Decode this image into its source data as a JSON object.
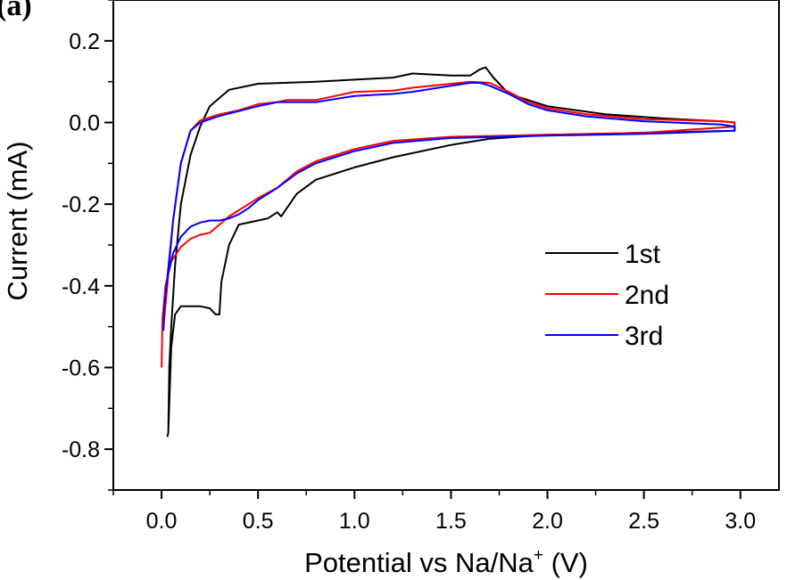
{
  "figure": {
    "panel_label": "(a)"
  },
  "chart_data": {
    "type": "line",
    "title": "",
    "xlabel": "Potential vs Na/Na⁺ (V)",
    "xlabel_main": "Potential vs Na/Na",
    "xlabel_sup": "+",
    "xlabel_unit": " (V)",
    "ylabel": "Current (mA)",
    "xlim": [
      -0.25,
      3.2
    ],
    "ylim": [
      -0.9,
      0.3
    ],
    "xticks": [
      0.0,
      0.5,
      1.0,
      1.5,
      2.0,
      2.5,
      3.0
    ],
    "xtick_labels": [
      "0.0",
      "0.5",
      "1.0",
      "1.5",
      "2.0",
      "2.5",
      "3.0"
    ],
    "yticks": [
      -0.8,
      -0.6,
      -0.4,
      -0.2,
      0.0,
      0.2
    ],
    "ytick_labels": [
      "-0.8",
      "-0.6",
      "-0.4",
      "-0.2",
      "0.0",
      "0.2"
    ],
    "grid": false,
    "legend_position": "center-right",
    "series": [
      {
        "name": "1st",
        "color": "#000000",
        "x": [
          0.03,
          0.035,
          0.05,
          0.07,
          0.1,
          0.15,
          0.2,
          0.25,
          0.28,
          0.3,
          0.31,
          0.35,
          0.4,
          0.5,
          0.55,
          0.6,
          0.62,
          0.7,
          0.8,
          1.0,
          1.2,
          1.5,
          1.7,
          2.0,
          2.5,
          2.97,
          2.97,
          2.9,
          2.6,
          2.3,
          2.0,
          1.8,
          1.72,
          1.68,
          1.65,
          1.6,
          1.5,
          1.3,
          1.2,
          1.0,
          0.8,
          0.5,
          0.35,
          0.25,
          0.2,
          0.15,
          0.1,
          0.07,
          0.05,
          0.04,
          0.035
        ],
        "y": [
          -0.77,
          -0.76,
          -0.55,
          -0.47,
          -0.45,
          -0.45,
          -0.45,
          -0.455,
          -0.47,
          -0.47,
          -0.39,
          -0.3,
          -0.25,
          -0.24,
          -0.235,
          -0.22,
          -0.23,
          -0.175,
          -0.14,
          -0.11,
          -0.085,
          -0.055,
          -0.04,
          -0.03,
          -0.025,
          -0.02,
          0.0,
          0.003,
          0.01,
          0.02,
          0.04,
          0.07,
          0.11,
          0.135,
          0.13,
          0.115,
          0.115,
          0.12,
          0.11,
          0.105,
          0.1,
          0.095,
          0.08,
          0.04,
          -0.01,
          -0.08,
          -0.2,
          -0.35,
          -0.5,
          -0.6,
          -0.76
        ]
      },
      {
        "name": "2nd",
        "color": "#ff0000",
        "x": [
          0.0,
          0.005,
          0.02,
          0.05,
          0.1,
          0.15,
          0.2,
          0.25,
          0.3,
          0.35,
          0.4,
          0.45,
          0.5,
          0.6,
          0.7,
          0.8,
          1.0,
          1.2,
          1.5,
          2.0,
          2.5,
          2.97,
          2.97,
          2.9,
          2.5,
          2.2,
          2.0,
          1.9,
          1.8,
          1.7,
          1.6,
          1.5,
          1.3,
          1.2,
          1.0,
          0.8,
          0.65,
          0.6,
          0.5,
          0.4,
          0.3,
          0.2,
          0.15,
          0.1,
          0.06,
          0.03,
          0.01
        ],
        "y": [
          -0.6,
          -0.48,
          -0.4,
          -0.34,
          -0.305,
          -0.285,
          -0.275,
          -0.27,
          -0.25,
          -0.23,
          -0.215,
          -0.2,
          -0.185,
          -0.16,
          -0.12,
          -0.095,
          -0.065,
          -0.045,
          -0.035,
          -0.03,
          -0.025,
          -0.01,
          0.0,
          0.003,
          0.008,
          0.02,
          0.035,
          0.05,
          0.075,
          0.097,
          0.1,
          0.095,
          0.085,
          0.078,
          0.075,
          0.055,
          0.055,
          0.05,
          0.045,
          0.03,
          0.02,
          0.005,
          -0.02,
          -0.1,
          -0.24,
          -0.4,
          -0.5
        ]
      },
      {
        "name": "3rd",
        "color": "#0000ff",
        "x": [
          0.01,
          0.015,
          0.03,
          0.06,
          0.1,
          0.15,
          0.2,
          0.25,
          0.3,
          0.35,
          0.4,
          0.45,
          0.5,
          0.6,
          0.7,
          0.8,
          1.0,
          1.2,
          1.5,
          2.0,
          2.5,
          2.97,
          2.97,
          2.9,
          2.5,
          2.2,
          2.0,
          1.9,
          1.8,
          1.7,
          1.65,
          1.6,
          1.5,
          1.3,
          1.2,
          1.0,
          0.8,
          0.65,
          0.6,
          0.5,
          0.4,
          0.3,
          0.2,
          0.15,
          0.1,
          0.06,
          0.03,
          0.015
        ],
        "y": [
          -0.51,
          -0.45,
          -0.38,
          -0.32,
          -0.28,
          -0.255,
          -0.245,
          -0.24,
          -0.24,
          -0.235,
          -0.225,
          -0.21,
          -0.19,
          -0.16,
          -0.125,
          -0.1,
          -0.07,
          -0.05,
          -0.038,
          -0.032,
          -0.028,
          -0.02,
          -0.01,
          -0.005,
          0.003,
          0.015,
          0.03,
          0.045,
          0.07,
          0.09,
          0.097,
          0.097,
          0.09,
          0.075,
          0.07,
          0.065,
          0.05,
          0.05,
          0.05,
          0.04,
          0.028,
          0.016,
          0.0,
          -0.02,
          -0.1,
          -0.24,
          -0.38,
          -0.45
        ]
      }
    ]
  }
}
